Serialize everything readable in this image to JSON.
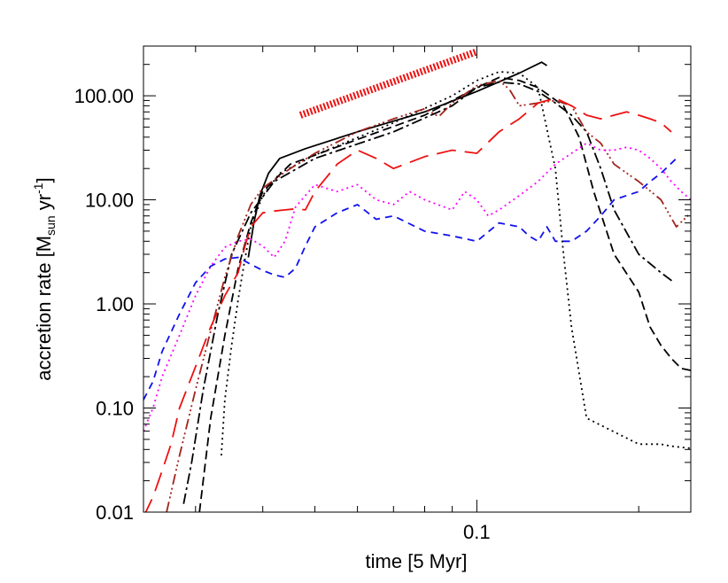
{
  "chart_data": {
    "type": "line",
    "xlabel": "time [5 Myr]",
    "ylabel_main": "accretion rate [M",
    "ylabel_sub": "sun",
    "ylabel_mid": " yr",
    "ylabel_sup": "-1",
    "ylabel_end": "]",
    "xscale": "log",
    "yscale": "log",
    "xlim": [
      0.024,
      0.25
    ],
    "ylim": [
      0.01,
      300
    ],
    "x_tick_labels": [
      {
        "value": 0.1,
        "label": "0.1"
      }
    ],
    "y_tick_labels": [
      {
        "value": 100,
        "label": "100.00"
      },
      {
        "value": 10,
        "label": "10.00"
      },
      {
        "value": 1,
        "label": "1.00"
      },
      {
        "value": 0.1,
        "label": "0.10"
      },
      {
        "value": 0.01,
        "label": "0.01"
      }
    ],
    "grid": false,
    "reference_line": {
      "color": "#ee1111",
      "style": "thick-hatched",
      "x": [
        0.047,
        0.1
      ],
      "y": [
        65,
        265
      ]
    },
    "series": [
      {
        "color": "#000000",
        "dash": "",
        "x": [
          0.0376,
          0.0385,
          0.0395,
          0.041,
          0.043,
          0.048,
          0.06,
          0.08,
          0.1,
          0.12,
          0.132,
          0.135
        ],
        "y": [
          2.8,
          6,
          11,
          18,
          25,
          31,
          45,
          70,
          110,
          165,
          210,
          195
        ]
      },
      {
        "color": "#000000",
        "dash": "2,4",
        "x": [
          0.0335,
          0.034,
          0.035,
          0.036,
          0.037,
          0.038,
          0.04,
          0.043,
          0.05,
          0.07,
          0.09,
          0.1,
          0.11,
          0.12,
          0.13,
          0.14,
          0.145,
          0.15,
          0.16,
          0.2,
          0.22,
          0.23,
          0.24,
          0.25
        ],
        "y": [
          0.035,
          0.12,
          0.4,
          1.1,
          2.6,
          5.5,
          11,
          18,
          27,
          55,
          100,
          140,
          170,
          165,
          120,
          20,
          3,
          0.6,
          0.08,
          0.045,
          0.045,
          0.043,
          0.042,
          0.041
        ]
      },
      {
        "color": "#000000",
        "dash": "10,5",
        "x": [
          0.0305,
          0.032,
          0.034,
          0.036,
          0.038,
          0.04,
          0.045,
          0.06,
          0.08,
          0.1,
          0.11,
          0.12,
          0.13,
          0.145,
          0.155,
          0.165,
          0.18,
          0.2,
          0.21,
          0.22,
          0.23,
          0.24,
          0.25
        ],
        "y": [
          0.01,
          0.08,
          0.5,
          2.2,
          6,
          12,
          22,
          38,
          65,
          120,
          150,
          140,
          120,
          80,
          40,
          12,
          3,
          1.3,
          0.6,
          0.4,
          0.3,
          0.24,
          0.23
        ]
      },
      {
        "color": "#000000",
        "dash": "12,4,3,4",
        "x": [
          0.0285,
          0.0295,
          0.031,
          0.033,
          0.035,
          0.038,
          0.042,
          0.05,
          0.07,
          0.09,
          0.1,
          0.11,
          0.12,
          0.13,
          0.14,
          0.15,
          0.16,
          0.17,
          0.18,
          0.2,
          0.22,
          0.233
        ],
        "y": [
          0.012,
          0.03,
          0.15,
          0.8,
          3,
          7.5,
          15,
          25,
          45,
          80,
          120,
          135,
          130,
          110,
          85,
          65,
          45,
          20,
          8,
          3,
          2,
          1.6
        ]
      },
      {
        "color": "#a1241d",
        "dash": "12,4,2,3,2,3,2,4",
        "x": [
          0.0265,
          0.028,
          0.03,
          0.032,
          0.034,
          0.036,
          0.038,
          0.04,
          0.045,
          0.05,
          0.06,
          0.07,
          0.08,
          0.085,
          0.09,
          0.1,
          0.11,
          0.115,
          0.12,
          0.13,
          0.14,
          0.15,
          0.16,
          0.17,
          0.18,
          0.2,
          0.22,
          0.235,
          0.25
        ],
        "y": [
          0.01,
          0.035,
          0.15,
          0.55,
          1.8,
          4.5,
          9,
          13,
          20,
          28,
          45,
          60,
          75,
          63,
          85,
          125,
          140,
          115,
          80,
          85,
          90,
          80,
          45,
          35,
          22,
          15,
          10,
          5.5,
          7.5
        ]
      },
      {
        "color": "#ee1111",
        "dash": "22,10",
        "x": [
          0.024,
          0.025,
          0.026,
          0.027,
          0.028,
          0.03,
          0.032,
          0.034,
          0.036,
          0.037,
          0.038,
          0.04,
          0.042,
          0.044,
          0.046,
          0.048,
          0.05,
          0.055,
          0.06,
          0.065,
          0.07,
          0.08,
          0.09,
          0.1,
          0.11,
          0.12,
          0.13,
          0.14,
          0.15,
          0.16,
          0.17,
          0.18,
          0.19,
          0.2,
          0.21,
          0.22,
          0.23
        ],
        "y": [
          0.009,
          0.014,
          0.025,
          0.045,
          0.1,
          0.25,
          0.6,
          1.2,
          2,
          3.5,
          5.5,
          7.5,
          7.8,
          8,
          8.2,
          8,
          12,
          22,
          30,
          25,
          20,
          26,
          30,
          28,
          45,
          60,
          85,
          95,
          80,
          65,
          60,
          65,
          70,
          65,
          60,
          55,
          45
        ]
      },
      {
        "color": "#ff00ff",
        "dash": "2,4",
        "x": [
          0.024,
          0.025,
          0.026,
          0.028,
          0.03,
          0.032,
          0.034,
          0.036,
          0.038,
          0.04,
          0.042,
          0.044,
          0.046,
          0.048,
          0.05,
          0.055,
          0.06,
          0.065,
          0.07,
          0.075,
          0.08,
          0.09,
          0.095,
          0.1,
          0.105,
          0.11,
          0.12,
          0.13,
          0.14,
          0.15,
          0.16,
          0.17,
          0.18,
          0.19,
          0.2,
          0.21,
          0.22,
          0.23,
          0.24,
          0.25
        ],
        "y": [
          0.06,
          0.1,
          0.2,
          0.5,
          1.2,
          2.3,
          3.5,
          4,
          4.2,
          3.6,
          2.8,
          4,
          8.5,
          11,
          14,
          12,
          14,
          10,
          9,
          12,
          10,
          8,
          12,
          10,
          7,
          8,
          11,
          15,
          22,
          28,
          35,
          30,
          30,
          32,
          30,
          25,
          20,
          15,
          12,
          10
        ]
      },
      {
        "color": "#1111ee",
        "dash": "8,6",
        "x": [
          0.024,
          0.025,
          0.026,
          0.028,
          0.03,
          0.032,
          0.034,
          0.036,
          0.038,
          0.04,
          0.042,
          0.044,
          0.046,
          0.048,
          0.05,
          0.055,
          0.06,
          0.065,
          0.07,
          0.08,
          0.09,
          0.1,
          0.11,
          0.12,
          0.125,
          0.13,
          0.135,
          0.14,
          0.15,
          0.16,
          0.17,
          0.18,
          0.19,
          0.2,
          0.21,
          0.22,
          0.235
        ],
        "y": [
          0.12,
          0.18,
          0.35,
          0.8,
          1.6,
          2.3,
          2.7,
          2.8,
          2.4,
          2.1,
          1.9,
          1.8,
          2.2,
          3.6,
          5.5,
          7.5,
          9,
          6.5,
          7,
          5,
          4.5,
          4,
          6,
          5.5,
          4.5,
          4,
          5.5,
          4,
          4,
          5,
          7,
          10,
          11,
          12,
          15,
          18,
          25
        ]
      }
    ]
  }
}
